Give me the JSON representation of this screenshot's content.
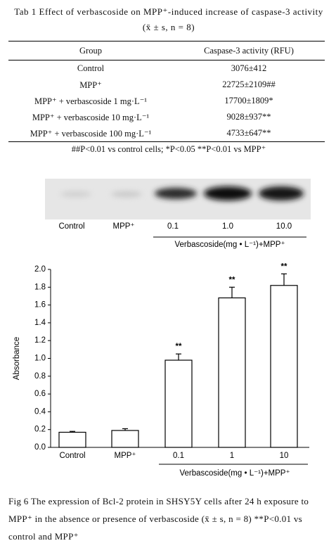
{
  "table": {
    "caption": "Tab 1  Effect of verbascoside on MPP⁺-induced increase of caspase-3 activity (x̄ ± s, n = 8)",
    "header": [
      "Group",
      "Caspase-3 activity (RFU)"
    ],
    "rows": [
      [
        "Control",
        "3076±412"
      ],
      [
        "MPP⁺",
        "22725±2109##"
      ],
      [
        "MPP⁺ + verbascoside 1 mg·L⁻¹",
        "17700±1809*"
      ],
      [
        "MPP⁺ + verbascoside 10 mg·L⁻¹",
        "9028±937**"
      ],
      [
        "MPP⁺ + verbascoside 100 mg·L⁻¹",
        "4733±647**"
      ]
    ],
    "note": "##P<0.01 vs control cells; *P<0.05 **P<0.01 vs MPP⁺"
  },
  "blot": {
    "lanes": [
      "Control",
      "MPP⁺",
      "0.1",
      "1.0",
      "10.0"
    ],
    "group_label": "Verbascoside(mg • L⁻¹)+MPP⁺"
  },
  "chart_data": {
    "type": "bar",
    "ylabel": "Absorbance",
    "categories": [
      "Control",
      "MPP⁺",
      "0.1",
      "1",
      "10"
    ],
    "values": [
      0.17,
      0.19,
      0.98,
      1.68,
      1.82
    ],
    "errors": [
      0.01,
      0.02,
      0.07,
      0.12,
      0.13
    ],
    "annotations": [
      null,
      null,
      "**",
      "**",
      "**"
    ],
    "group_label": "Verbascoside(mg • L⁻¹)+MPP⁺",
    "color": "#ffffff",
    "ylim": [
      0,
      2.0
    ],
    "yticks": [
      {
        "value": 0,
        "label": "0.0"
      },
      0.2,
      0.4,
      0.6,
      0.8,
      {
        "value": 1,
        "label": "1.0"
      },
      1.2,
      1.4,
      1.6,
      1.8,
      {
        "value": 2,
        "label": "2.0"
      }
    ]
  },
  "figure_caption": "Fig 6  The expression of Bcl-2 protein in SHSY5Y cells after 24 h exposure to MPP⁺ in the absence or presence of verbascoside (x̄ ± s, n = 8)   **P<0.01 vs control and MPP⁺"
}
